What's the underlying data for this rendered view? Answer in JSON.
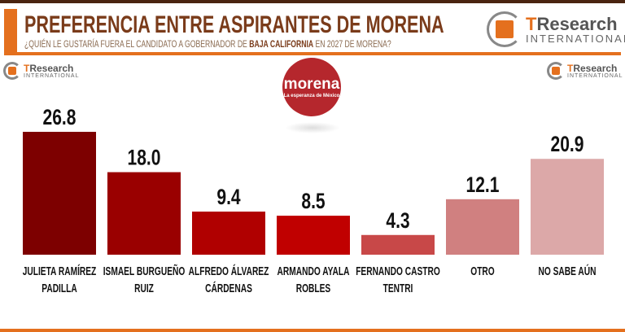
{
  "header": {
    "title": "PREFERENCIA ENTRE ASPIRANTES DE MORENA",
    "subtitle_pre": "¿QUIÉN LE GUSTARÍA FUERA EL CANDIDATO A GOBERNADOR DE ",
    "subtitle_bold": "BAJA CALIFORNIA",
    "subtitle_post": " EN 2027 DE MORENA?",
    "accent": "#e4701e",
    "title_color": "#7a3b1a"
  },
  "logos": {
    "brand_t": "T",
    "brand_rest": "Research",
    "brand_sub": "INTERNATIONAL",
    "party": "morena",
    "party_tagline": "La esperanza de México"
  },
  "chart_data": {
    "type": "bar",
    "title": "PREFERENCIA ENTRE ASPIRANTES DE MORENA",
    "categories": [
      [
        "JULIETA RAMÍREZ",
        "PADILLA"
      ],
      [
        "ISMAEL BURGUEÑO",
        "RUIZ"
      ],
      [
        "ALFREDO ÁLVAREZ",
        "CÁRDENAS"
      ],
      [
        "ARMANDO AYALA",
        "ROBLES"
      ],
      [
        "FERNANDO CASTRO",
        "TENTRI"
      ],
      [
        "OTRO"
      ],
      [
        "NO SABE AÚN"
      ]
    ],
    "values": [
      26.8,
      18.0,
      9.4,
      8.5,
      4.3,
      12.1,
      20.9
    ],
    "value_labels": [
      "26.8",
      "18.0",
      "9.4",
      "8.5",
      "4.3",
      "12.1",
      "20.9"
    ],
    "colors": [
      "#7d0000",
      "#9a0000",
      "#b00000",
      "#c00000",
      "#c84848",
      "#d08080",
      "#dca8a8"
    ],
    "ylim": [
      0,
      30
    ],
    "grid": false
  }
}
